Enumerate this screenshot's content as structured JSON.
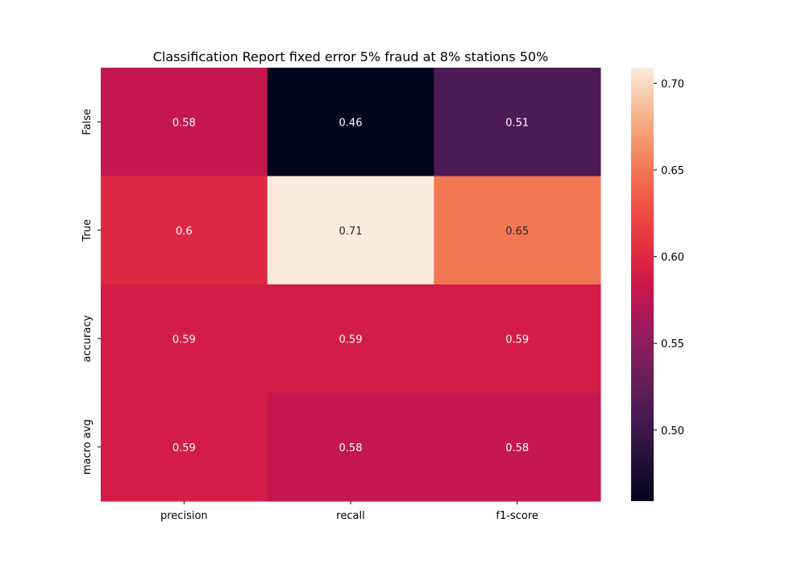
{
  "chart_data": {
    "type": "heatmap",
    "title": "Classification Report fixed error 5% fraud at 8% stations 50%",
    "xlabel": "",
    "ylabel": "",
    "columns": [
      "precision",
      "recall",
      "f1-score"
    ],
    "rows": [
      "False",
      "True",
      "accuracy",
      "macro avg"
    ],
    "values": [
      [
        0.58,
        0.46,
        0.51
      ],
      [
        0.6,
        0.71,
        0.65
      ],
      [
        0.59,
        0.59,
        0.59
      ],
      [
        0.59,
        0.58,
        0.58
      ]
    ],
    "cell_labels": [
      [
        "0.58",
        "0.46",
        "0.51"
      ],
      [
        "0.6",
        "0.71",
        "0.65"
      ],
      [
        "0.59",
        "0.59",
        "0.59"
      ],
      [
        "0.59",
        "0.58",
        "0.58"
      ]
    ],
    "colormap": "rocket",
    "colorbar": {
      "range": [
        0.459,
        0.709
      ],
      "ticks": [
        0.5,
        0.55,
        0.6,
        0.65,
        0.7
      ],
      "tick_labels": [
        "0.50",
        "0.55",
        "0.60",
        "0.65",
        "0.70"
      ]
    },
    "grid": false
  }
}
